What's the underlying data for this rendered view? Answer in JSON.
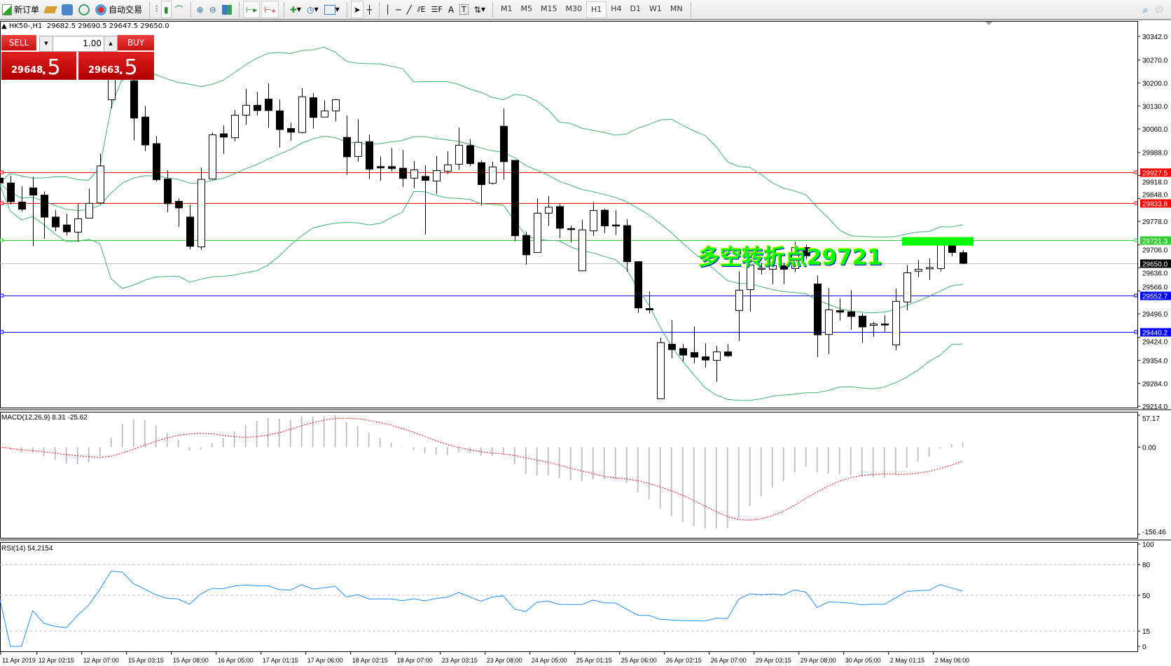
{
  "toolbar": {
    "new_order": "新订单",
    "auto_trading": "自动交易",
    "timeframes": [
      "M1",
      "M5",
      "M15",
      "M30",
      "H1",
      "H4",
      "D1",
      "W1",
      "MN"
    ],
    "active_timeframe": "H1"
  },
  "chart_header": {
    "symbol": "HK50-,H1",
    "ohlc": "29682.5 29690.5 29647.5 29650.0"
  },
  "trade_panel": {
    "sell_label": "SELL",
    "buy_label": "BUY",
    "lot": "1.00",
    "sell_main": "29648",
    "sell_frac": ".5",
    "buy_main": "29663",
    "buy_frac": ".5"
  },
  "annotation": {
    "text": "多空转折点29721",
    "color": "#00ff00"
  },
  "colors": {
    "bull": "#ffffff",
    "bear": "#000000",
    "bands": "#3cb371",
    "macd_bars": "#c0c0c0",
    "signal": "#ff0000",
    "rsi": "#1e90ff"
  },
  "chart_data": [
    {
      "type": "candlestick",
      "symbol": "HK50-",
      "timeframe": "H1",
      "ylim": [
        29210,
        30389
      ],
      "y_tick_labels": [
        "30342.0",
        "30270.0",
        "30200.0",
        "30130.0",
        "30060.0",
        "29988.0",
        "29918.0",
        "29848.0",
        "29778.0",
        "29706.0",
        "29636.0",
        "29566.0",
        "29496.0",
        "29424.0",
        "29354.0",
        "29284.0",
        "29214.0"
      ],
      "x_tick_labels": [
        {
          "bar": 0,
          "label": "11 Apr 2019"
        },
        {
          "bar": 4,
          "label": "12 Apr 02:15"
        },
        {
          "bar": 8,
          "label": "12 Apr 07:00"
        },
        {
          "bar": 12,
          "label": "15 Apr 03:15"
        },
        {
          "bar": 16,
          "label": "15 Apr 08:00"
        },
        {
          "bar": 20,
          "label": "16 Apr 05:00"
        },
        {
          "bar": 24,
          "label": "17 Apr 01:15"
        },
        {
          "bar": 28,
          "label": "17 Apr 06:00"
        },
        {
          "bar": 32,
          "label": "18 Apr 02:15"
        },
        {
          "bar": 36,
          "label": "18 Apr 07:00"
        },
        {
          "bar": 40,
          "label": "23 Apr 03:15"
        },
        {
          "bar": 44,
          "label": "23 Apr 08:00"
        },
        {
          "bar": 48,
          "label": "24 Apr 05:00"
        },
        {
          "bar": 52,
          "label": "25 Apr 01:15"
        },
        {
          "bar": 56,
          "label": "25 Apr 06:00"
        },
        {
          "bar": 60,
          "label": "26 Apr 02:15"
        },
        {
          "bar": 64,
          "label": "26 Apr 07:00"
        },
        {
          "bar": 68,
          "label": "29 Apr 03:15"
        },
        {
          "bar": 72,
          "label": "29 Apr 08:00"
        },
        {
          "bar": 76,
          "label": "30 Apr 05:00"
        },
        {
          "bar": 80,
          "label": "2 May 01:15"
        },
        {
          "bar": 84,
          "label": "2 May 06:00"
        }
      ],
      "ohlc": [
        [
          29910,
          29919,
          29887,
          29895
        ],
        [
          29895,
          29917,
          29830,
          29838
        ],
        [
          29837,
          29885,
          29808,
          29815
        ],
        [
          29880,
          29914,
          29702,
          29858
        ],
        [
          29858,
          29869,
          29725,
          29791
        ],
        [
          29791,
          29812,
          29748,
          29761
        ],
        [
          29767,
          29801,
          29735,
          29746
        ],
        [
          29745,
          29832,
          29716,
          29786
        ],
        [
          29788,
          29878,
          29788,
          29833
        ],
        [
          29834,
          29985,
          29830,
          29947
        ],
        [
          30149,
          30271,
          30123,
          30239
        ],
        [
          30250,
          30282,
          30207,
          30229
        ],
        [
          30207,
          30218,
          30025,
          30093
        ],
        [
          30096,
          30130,
          29992,
          30011
        ],
        [
          30015,
          30038,
          29899,
          29905
        ],
        [
          29907,
          29934,
          29806,
          29832
        ],
        [
          29839,
          29848,
          29761,
          29819
        ],
        [
          29791,
          29829,
          29693,
          29702
        ],
        [
          29700,
          29942,
          29691,
          29906
        ],
        [
          29907,
          30049,
          29905,
          30042
        ],
        [
          30045,
          30071,
          29984,
          30035
        ],
        [
          30033,
          30118,
          30022,
          30102
        ],
        [
          30102,
          30182,
          30073,
          30132
        ],
        [
          30132,
          30173,
          30101,
          30116
        ],
        [
          30151,
          30199,
          30063,
          30116
        ],
        [
          30115,
          30150,
          30003,
          30058
        ],
        [
          30061,
          30079,
          30024,
          30050
        ],
        [
          30049,
          30184,
          30046,
          30158
        ],
        [
          30155,
          30169,
          30061,
          30095
        ],
        [
          30096,
          30147,
          30096,
          30115
        ],
        [
          30115,
          30151,
          30083,
          30149
        ],
        [
          30034,
          30101,
          29920,
          29975
        ],
        [
          29976,
          30090,
          29960,
          30019
        ],
        [
          30021,
          30043,
          29907,
          29937
        ],
        [
          29945,
          29976,
          29902,
          29941
        ],
        [
          29945,
          30002,
          29930,
          29939
        ],
        [
          29940,
          29996,
          29883,
          29909
        ],
        [
          29910,
          29962,
          29879,
          29935
        ],
        [
          29915,
          29949,
          29738,
          29903
        ],
        [
          29901,
          29977,
          29862,
          29933
        ],
        [
          29931,
          29992,
          29922,
          29950
        ],
        [
          29952,
          30064,
          29935,
          30010
        ],
        [
          30009,
          30028,
          29947,
          29954
        ],
        [
          29957,
          29964,
          29826,
          29890
        ],
        [
          29894,
          29960,
          29890,
          29944
        ],
        [
          30068,
          30122,
          29905,
          29960
        ],
        [
          29964,
          29965,
          29717,
          29734
        ],
        [
          29735,
          29746,
          29646,
          29676
        ],
        [
          29683,
          29848,
          29683,
          29803
        ],
        [
          29803,
          29855,
          29764,
          29821
        ],
        [
          29823,
          29831,
          29727,
          29757
        ],
        [
          29756,
          29765,
          29714,
          29753
        ],
        [
          29627,
          29783,
          29627,
          29752
        ],
        [
          29749,
          29838,
          29734,
          29811
        ],
        [
          29812,
          29816,
          29742,
          29764
        ],
        [
          29767,
          29812,
          29736,
          29764
        ],
        [
          29765,
          29785,
          29625,
          29655
        ],
        [
          29655,
          29655,
          29499,
          29514
        ],
        [
          29512,
          29564,
          29497,
          29508
        ],
        [
          29237,
          29423,
          29237,
          29408
        ],
        [
          29403,
          29477,
          29360,
          29387
        ],
        [
          29390,
          29404,
          29351,
          29370
        ],
        [
          29378,
          29457,
          29345,
          29364
        ],
        [
          29365,
          29406,
          29332,
          29355
        ],
        [
          29354,
          29398,
          29289,
          29380
        ],
        [
          29380,
          29404,
          29364,
          29368
        ],
        [
          29506,
          29626,
          29413,
          29568
        ],
        [
          29570,
          29645,
          29503,
          29645
        ],
        [
          29634,
          29652,
          29616,
          29635
        ],
        [
          29632,
          29652,
          29586,
          29643
        ],
        [
          29643,
          29652,
          29586,
          29632
        ],
        [
          29634,
          29716,
          29623,
          29698
        ],
        [
          29698,
          29707,
          29662,
          29673
        ],
        [
          29587,
          29613,
          29364,
          29432
        ],
        [
          29433,
          29575,
          29373,
          29508
        ],
        [
          29506,
          29543,
          29475,
          29501
        ],
        [
          29502,
          29568,
          29447,
          29488
        ],
        [
          29489,
          29498,
          29407,
          29456
        ],
        [
          29461,
          29472,
          29426,
          29465
        ],
        [
          29465,
          29492,
          29442,
          29462
        ],
        [
          29401,
          29573,
          29385,
          29534
        ],
        [
          29532,
          29645,
          29507,
          29621
        ],
        [
          29626,
          29660,
          29608,
          29632
        ],
        [
          29633,
          29665,
          29599,
          29637
        ],
        [
          29634,
          29730,
          29625,
          29720
        ],
        [
          29709,
          29712,
          29672,
          29683
        ],
        [
          29682.5,
          29690.5,
          29647.5,
          29650.0
        ]
      ],
      "indicators": {
        "bollinger": {
          "period": 20,
          "deviation": 2
        }
      },
      "price_lines": [
        {
          "price": 29927.5,
          "label": "29927.5",
          "color": "#ff0000"
        },
        {
          "price": 29833.8,
          "label": "29833.8",
          "color": "#ff0000"
        },
        {
          "price": 29721.3,
          "label": "29721.3",
          "color": "#32cd32"
        },
        {
          "price": 29650.0,
          "label": "29650.0",
          "color": "#000000",
          "line_color": "#c0c0c0"
        },
        {
          "price": 29552.7,
          "label": "29552.7",
          "color": "#0000ff"
        },
        {
          "price": 29440.2,
          "label": "29440.2",
          "color": "#0000ff"
        }
      ],
      "highlight_rect": {
        "price_low": 29704,
        "price_high": 29730,
        "color": "#00ff00"
      }
    },
    {
      "type": "macd",
      "label": "MACD(12,26,9) 8.31 -25.62",
      "params": [
        12,
        26,
        9
      ],
      "last_values": {
        "macd": 8.31,
        "signal": -25.62
      },
      "ylim": [
        -156.46,
        57.17
      ],
      "y_tick_labels": [
        "57.17",
        "0.00",
        "-156.46"
      ]
    },
    {
      "type": "rsi",
      "label": "RSI(14) 54.2154",
      "period": 14,
      "last_value": 54.2154,
      "ylim": [
        0,
        100
      ],
      "levels": [
        80,
        50,
        15
      ],
      "y_tick_labels": [
        "100",
        "80",
        "50",
        "15",
        "0"
      ]
    }
  ]
}
